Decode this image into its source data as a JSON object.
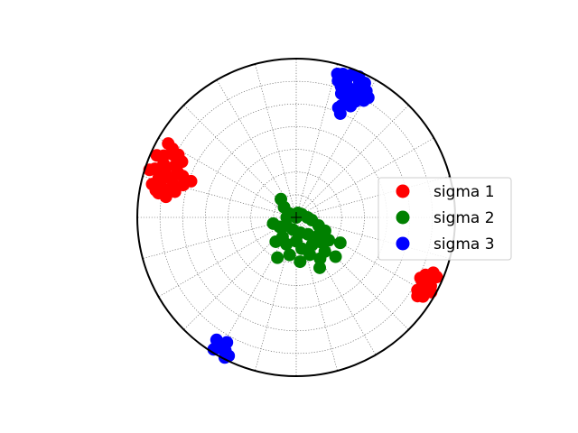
{
  "chart_data": {
    "type": "scatter",
    "projection": "polar stereonet (lower hemisphere)",
    "grid": true,
    "legend_placement": "right",
    "series": [
      {
        "name": "sigma 1",
        "color": "#ff0000",
        "points": [
          {
            "az": 292,
            "r": 0.9
          },
          {
            "az": 290,
            "r": 0.88
          },
          {
            "az": 288,
            "r": 0.86
          },
          {
            "az": 295,
            "r": 0.92
          },
          {
            "az": 293,
            "r": 0.83
          },
          {
            "az": 289,
            "r": 0.94
          },
          {
            "az": 286,
            "r": 0.9
          },
          {
            "az": 284,
            "r": 0.88
          },
          {
            "az": 297,
            "r": 0.87
          },
          {
            "az": 299,
            "r": 0.89
          },
          {
            "az": 291,
            "r": 0.8
          },
          {
            "az": 287,
            "r": 0.82
          },
          {
            "az": 283,
            "r": 0.93
          },
          {
            "az": 294,
            "r": 0.96
          },
          {
            "az": 282,
            "r": 0.85
          },
          {
            "az": 285,
            "r": 0.8
          },
          {
            "az": 298,
            "r": 0.84
          },
          {
            "az": 281,
            "r": 0.9
          },
          {
            "az": 296,
            "r": 0.8
          },
          {
            "az": 290,
            "r": 0.76
          },
          {
            "az": 286,
            "r": 0.74
          },
          {
            "az": 282,
            "r": 0.78
          },
          {
            "az": 279,
            "r": 0.83
          },
          {
            "az": 300,
            "r": 0.93
          },
          {
            "az": 288,
            "r": 0.97
          },
          {
            "az": 280,
            "r": 0.88
          },
          {
            "az": 289,
            "r": 0.7
          },
          {
            "az": 117,
            "r": 0.95
          },
          {
            "az": 115,
            "r": 0.92
          },
          {
            "az": 118,
            "r": 0.9
          },
          {
            "az": 120,
            "r": 0.93
          },
          {
            "az": 113,
            "r": 0.96
          },
          {
            "az": 119,
            "r": 0.97
          },
          {
            "az": 116,
            "r": 0.87
          },
          {
            "az": 121,
            "r": 0.89
          },
          {
            "az": 114,
            "r": 0.89
          },
          {
            "az": 122,
            "r": 0.94
          },
          {
            "az": 112,
            "r": 0.93
          },
          {
            "az": 123,
            "r": 0.91
          }
        ]
      },
      {
        "name": "sigma 2",
        "color": "#008000",
        "points": [
          {
            "az": 0,
            "r": 0.0
          },
          {
            "az": 20,
            "r": 0.03
          },
          {
            "az": 310,
            "r": 0.1
          },
          {
            "az": 320,
            "r": 0.15
          },
          {
            "az": 230,
            "r": 0.08
          },
          {
            "az": 240,
            "r": 0.12
          },
          {
            "az": 255,
            "r": 0.15
          },
          {
            "az": 215,
            "r": 0.15
          },
          {
            "az": 220,
            "r": 0.2
          },
          {
            "az": 200,
            "r": 0.18
          },
          {
            "az": 180,
            "r": 0.15
          },
          {
            "az": 190,
            "r": 0.24
          },
          {
            "az": 175,
            "r": 0.28
          },
          {
            "az": 160,
            "r": 0.25
          },
          {
            "az": 150,
            "r": 0.3
          },
          {
            "az": 140,
            "r": 0.28
          },
          {
            "az": 135,
            "r": 0.22
          },
          {
            "az": 125,
            "r": 0.25
          },
          {
            "az": 120,
            "r": 0.32
          },
          {
            "az": 130,
            "r": 0.18
          },
          {
            "az": 145,
            "r": 0.13
          },
          {
            "az": 110,
            "r": 0.15
          },
          {
            "az": 100,
            "r": 0.1
          },
          {
            "az": 90,
            "r": 0.07
          },
          {
            "az": 60,
            "r": 0.04
          },
          {
            "az": 165,
            "r": 0.1
          },
          {
            "az": 195,
            "r": 0.08
          },
          {
            "az": 270,
            "r": 0.06
          },
          {
            "az": 300,
            "r": 0.05
          },
          {
            "az": 155,
            "r": 0.35
          },
          {
            "az": 170,
            "r": 0.2
          },
          {
            "az": 205,
            "r": 0.28
          },
          {
            "az": 150,
            "r": 0.2
          },
          {
            "az": 115,
            "r": 0.2
          },
          {
            "az": 135,
            "r": 0.35
          }
        ]
      },
      {
        "name": "sigma 3",
        "color": "#0000ff",
        "points": [
          {
            "az": 22,
            "r": 0.88
          },
          {
            "az": 24,
            "r": 0.85
          },
          {
            "az": 20,
            "r": 0.92
          },
          {
            "az": 26,
            "r": 0.9
          },
          {
            "az": 18,
            "r": 0.95
          },
          {
            "az": 23,
            "r": 0.8
          },
          {
            "az": 28,
            "r": 0.87
          },
          {
            "az": 21,
            "r": 0.96
          },
          {
            "az": 25,
            "r": 0.94
          },
          {
            "az": 19,
            "r": 0.87
          },
          {
            "az": 27,
            "r": 0.82
          },
          {
            "az": 30,
            "r": 0.85
          },
          {
            "az": 17,
            "r": 0.9
          },
          {
            "az": 22,
            "r": 0.76
          },
          {
            "az": 24,
            "r": 0.97
          },
          {
            "az": 29,
            "r": 0.91
          },
          {
            "az": 20,
            "r": 0.83
          },
          {
            "az": 26,
            "r": 0.78
          },
          {
            "az": 31,
            "r": 0.88
          },
          {
            "az": 16,
            "r": 0.94
          },
          {
            "az": 23,
            "r": 0.71
          },
          {
            "az": 27,
            "r": 0.95
          },
          {
            "az": 21,
            "r": 0.74
          },
          {
            "az": 206,
            "r": 0.97
          },
          {
            "az": 208,
            "r": 0.95
          },
          {
            "az": 210,
            "r": 0.93
          },
          {
            "az": 211,
            "r": 0.96
          },
          {
            "az": 213,
            "r": 0.92
          },
          {
            "az": 209,
            "r": 0.9
          },
          {
            "az": 207,
            "r": 0.99
          },
          {
            "az": 212,
            "r": 0.98
          }
        ]
      }
    ]
  }
}
